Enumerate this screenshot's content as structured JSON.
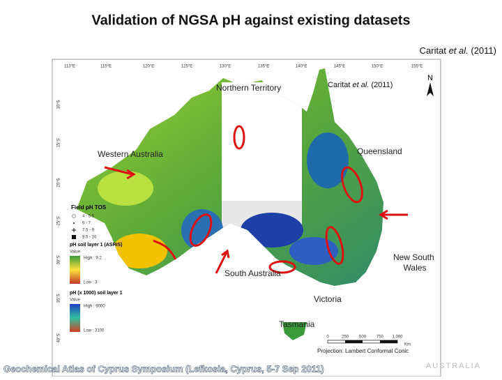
{
  "header": {
    "title": "Validation of NGSA pH against existing datasets"
  },
  "citation": {
    "author": "Caritat",
    "etal": "et al.",
    "year": "(2011)"
  },
  "map": {
    "citation": {
      "author": "Caritat",
      "etal": "et al.",
      "year": "(2011)"
    },
    "longitudes": [
      "113°E",
      "115°E",
      "120°E",
      "125°E",
      "130°E",
      "135°E",
      "140°E",
      "145°E",
      "150°E",
      "155°E"
    ],
    "latitudes": [
      "10°S",
      "15°S",
      "20°S",
      "25°S",
      "30°S",
      "35°S",
      "40°S"
    ],
    "regions": [
      "Northern Territory",
      "Western Australia",
      "Queensland",
      "South Australia",
      "New South Wales",
      "Victoria",
      "Tasmania"
    ],
    "north": "N",
    "legend": {
      "title": "Field pH TOS",
      "classes": [
        "4 - 5.5",
        "6 - 7",
        "7.5 - 9",
        "9.5 - 10"
      ],
      "layer1": {
        "title": "pH soil layer 1 (ASRIS)",
        "value": "Value",
        "high": "High : 9.2",
        "low": "Low : 3"
      },
      "layer2": {
        "title": "pH (x 1000) soil layer 1",
        "value": "Value",
        "high": "High : 9000",
        "low": "Low : 3100"
      }
    },
    "scale": {
      "ticks": [
        "0",
        "250",
        "500",
        "750",
        "1,000"
      ],
      "unit": "Km"
    },
    "projection": "Projection: Lambert Conformal Conic"
  },
  "footer": {
    "text": "Geochemical Atlas of Cyprus Symposium (Lefkosia, Cyprus, 5-7 Sep 2011)",
    "watermark": "AUSTRALIA"
  }
}
